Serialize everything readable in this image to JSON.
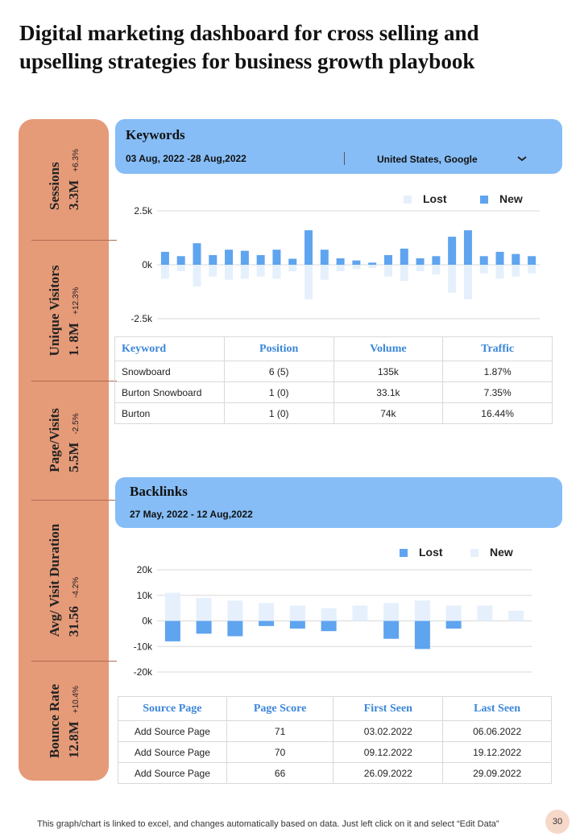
{
  "title": "Digital marketing dashboard  for cross selling and upselling strategies for business growth playbook",
  "kpis": [
    {
      "label": "Sessions",
      "value": "3.3M",
      "change": "+6.3%"
    },
    {
      "label": "Unique Visitors",
      "value": "1. 8M",
      "change": "+12.3%"
    },
    {
      "label": "Page/Visits",
      "value": "5.5M",
      "change": "-2.5%"
    },
    {
      "label": "Avg/ Visit Duration",
      "value": "31.56",
      "change": "-4.2%"
    },
    {
      "label": "Bounce Rate",
      "value": "12.8M",
      "change": "+10.4%"
    }
  ],
  "keywords_panel": {
    "title": "Keywords",
    "date_range": "03 Aug, 2022 -28 Aug,2022",
    "region": "United States, Google",
    "table": {
      "headers": [
        "Keyword",
        "Position",
        "Volume",
        "Traffic"
      ],
      "rows": [
        [
          "Snowboard",
          "6 (5)",
          "135k",
          "1.87%"
        ],
        [
          "Burton Snowboard",
          "1 (0)",
          "33.1k",
          "7.35%"
        ],
        [
          "Burton",
          "1 (0)",
          "74k",
          "16.44%"
        ]
      ]
    }
  },
  "backlinks_panel": {
    "title": "Backlinks",
    "date_range": "27 May, 2022  - 12 Aug,2022",
    "table": {
      "headers": [
        "Source Page",
        "Page Score",
        "First Seen",
        "Last Seen"
      ],
      "rows": [
        [
          "Add Source Page",
          "71",
          "03.02.2022",
          "06.06.2022"
        ],
        [
          "Add Source Page",
          "70",
          "09.12.2022",
          "19.12.2022"
        ],
        [
          "Add Source Page",
          "66",
          "26.09.2022",
          "29.09.2022"
        ]
      ]
    }
  },
  "colors": {
    "accent_blue": "#5fa4ee",
    "light_blue": "#e5f0fc",
    "header_blue": "#86bdf6",
    "kpi_orange": "#e59a78"
  },
  "icons": {
    "dropdown": "chevron-down-icon"
  },
  "chart_data": [
    {
      "type": "bar",
      "ylim": [
        -2500,
        2500
      ],
      "yticks": [
        {
          "v": 2500,
          "label": "2.5k"
        },
        {
          "v": 0,
          "label": "0k"
        },
        {
          "v": -2500,
          "label": "-2.5k"
        }
      ],
      "series": [
        {
          "name": "Lost",
          "color": "#e5f0fc",
          "values": [
            -650,
            -300,
            -1000,
            -550,
            -700,
            -650,
            -550,
            -650,
            -300,
            -1600,
            -700,
            -300,
            -200,
            -150,
            -550,
            -750,
            -300,
            -450,
            -1300,
            -1600,
            -400,
            -650,
            -550,
            -400
          ]
        },
        {
          "name": "New",
          "color": "#5fa4ee",
          "values": [
            600,
            400,
            1000,
            450,
            700,
            650,
            450,
            700,
            280,
            1600,
            700,
            300,
            200,
            100,
            450,
            750,
            300,
            400,
            1300,
            1600,
            400,
            600,
            500,
            400
          ]
        }
      ],
      "legend": "top-right"
    },
    {
      "type": "bar",
      "ylim": [
        -20,
        20
      ],
      "yticks": [
        {
          "v": 20,
          "label": "20k"
        },
        {
          "v": 10,
          "label": "10k"
        },
        {
          "v": 0,
          "label": "0k"
        },
        {
          "v": -10,
          "label": "-10k"
        },
        {
          "v": -20,
          "label": "-20k"
        }
      ],
      "series": [
        {
          "name": "Lost",
          "color": "#5fa4ee",
          "values": [
            -8,
            -5,
            -6,
            -2,
            -3,
            -4,
            0,
            -7,
            -11,
            -3,
            0,
            0
          ]
        },
        {
          "name": "New",
          "color": "#e5f0fc",
          "values": [
            11,
            9,
            8,
            7,
            6,
            5,
            6,
            7,
            8,
            6,
            6,
            4
          ]
        }
      ],
      "legend": "top-right"
    }
  ],
  "footer": "This graph/chart is linked to excel,  and changes automatically based on data. Just left click on it and select “Edit Data”",
  "page_number": "30"
}
